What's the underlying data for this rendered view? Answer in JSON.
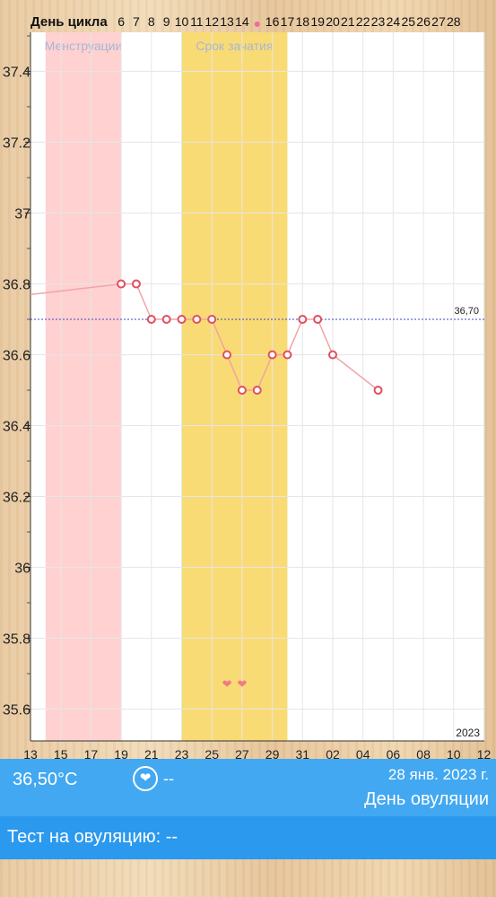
{
  "chart_data": {
    "type": "line",
    "cycle_day_label": "День цикла",
    "cycle_days": [
      "6",
      "7",
      "8",
      "9",
      "10",
      "11",
      "12",
      "13",
      "14",
      "",
      "16",
      "17",
      "18",
      "19",
      "20",
      "21",
      "22",
      "23",
      "24",
      "25",
      "26",
      "27",
      "28"
    ],
    "x_tick_labels": [
      "13",
      "15",
      "17",
      "19",
      "21",
      "23",
      "25",
      "27",
      "29",
      "31",
      "02",
      "04",
      "06",
      "08",
      "10",
      "12"
    ],
    "y_tick_labels": [
      "35.6",
      "35.8",
      "36",
      "36.2",
      "36.4",
      "36.6",
      "36.8",
      "37",
      "37.2",
      "37.4"
    ],
    "ylim": [
      35.5,
      37.5
    ],
    "year_label": "2023",
    "month_marker": "янв.",
    "bands": [
      {
        "label": "Менструации",
        "from": "14 дек.",
        "to": "19 дек.",
        "color": "#ffd1d1"
      },
      {
        "label": "Срок зачатия",
        "from": "23 дек.",
        "to": "30 дек.",
        "color": "#f9db75"
      }
    ],
    "reference_line": {
      "value": 36.7,
      "label": "36,70"
    },
    "selected": {
      "day": "28 янв.",
      "value": 36.5,
      "label": "36,50°C"
    },
    "series": [
      {
        "points": [
          {
            "x": "13 дек.",
            "y": 36.77,
            "marker": false
          },
          {
            "x": "19 дек.",
            "y": 36.8
          },
          {
            "x": "20 дек.",
            "y": 36.8
          },
          {
            "x": "21 дек.",
            "y": 36.7
          },
          {
            "x": "22 дек.",
            "y": 36.7
          },
          {
            "x": "23 дек.",
            "y": 36.7
          },
          {
            "x": "24 дек.",
            "y": 36.7
          },
          {
            "x": "25 дек.",
            "y": 36.7
          },
          {
            "x": "26 дек.",
            "y": 36.6
          },
          {
            "x": "27 дек.",
            "y": 36.5
          },
          {
            "x": "28 дек.",
            "y": 36.5
          },
          {
            "x": "29 дек.",
            "y": 36.6
          },
          {
            "x": "30 дек.",
            "y": 36.6
          },
          {
            "x": "31 дек.",
            "y": 36.7
          },
          {
            "x": "01 янв.",
            "y": 36.7
          },
          {
            "x": "02 янв.",
            "y": 36.6
          },
          {
            "x": "05 янв.",
            "y": 36.5
          }
        ]
      }
    ],
    "hearts": [
      {
        "x": "26 дек."
      },
      {
        "x": "27 дек."
      }
    ],
    "colors": {
      "line": "#f2a3a6",
      "marker": "#e04f5f",
      "vertical_marker": "#d94a5a",
      "reference": "#3a46c8",
      "grid": "#e6e6e6"
    }
  },
  "info": {
    "temp": "36,50°C",
    "heart_icon": "heart-icon",
    "intercourse": "--",
    "date": "28 янв. 2023 г.",
    "phase": "День овуляции"
  },
  "test": {
    "label": "Тест на овуляцию: --"
  }
}
